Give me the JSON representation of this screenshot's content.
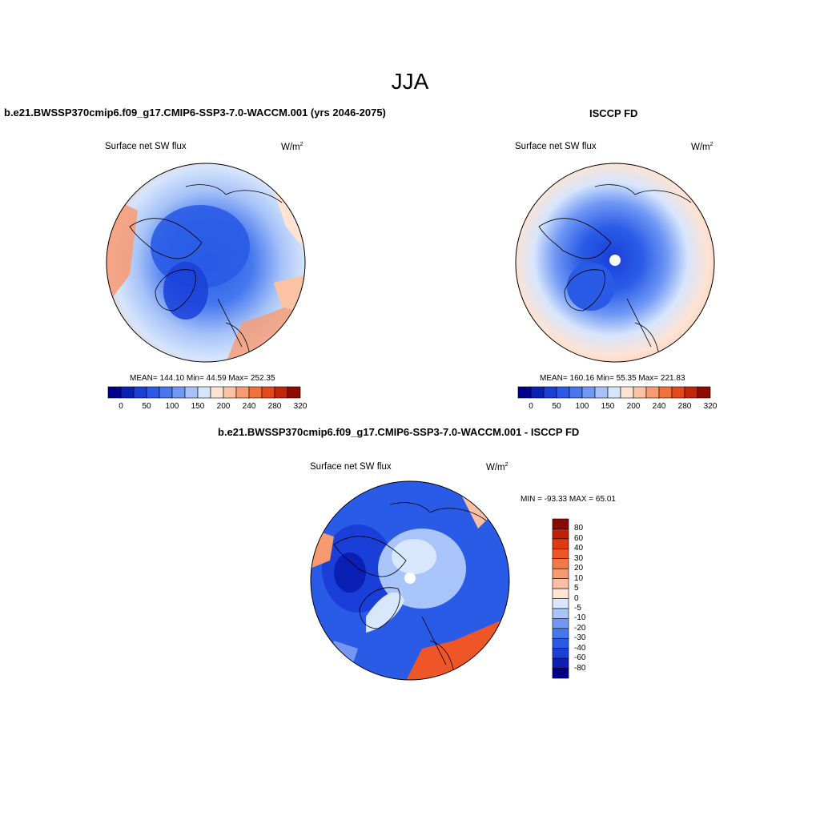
{
  "season": "JJA",
  "colors": {
    "abs_palette": [
      "#00008c",
      "#0a1fb4",
      "#1a3fd8",
      "#2a5be6",
      "#4577ee",
      "#6f97f4",
      "#a6c2f8",
      "#d6e5fc",
      "#fde3d4",
      "#fcc2a4",
      "#f99a72",
      "#f2713f",
      "#e24a1b",
      "#c0260a",
      "#8e0b00"
    ],
    "diff_palette": [
      "#00008c",
      "#0a1fb4",
      "#1a3fd8",
      "#2a5be6",
      "#4577ee",
      "#7397f2",
      "#a9c4f8",
      "#d8e7fc",
      "#fde4d6",
      "#fbc0a3",
      "#f89a70",
      "#f37a48",
      "#ef5627",
      "#df3a12",
      "#bf2109",
      "#8a0a00"
    ]
  },
  "panels": [
    {
      "title": "b.e21.BWSSP370cmip6.f09_g17.CMIP6-SSP3-7.0-WACCM.001 (yrs 2046-2075)",
      "var_name": "Surface net SW flux",
      "units_base": "W/m",
      "units_exp": "2",
      "stats": "MEAN= 144.10  Min=  44.59  Max= 252.35",
      "colorbar_labels": [
        "0",
        "50",
        "100",
        "150",
        "200",
        "240",
        "280",
        "320"
      ]
    },
    {
      "title": "ISCCP FD",
      "var_name": "Surface net SW flux",
      "units_base": "W/m",
      "units_exp": "2",
      "stats": "MEAN= 160.16  Min=  55.35  Max= 221.83",
      "colorbar_labels": [
        "0",
        "50",
        "100",
        "150",
        "200",
        "240",
        "280",
        "320"
      ]
    },
    {
      "title": "b.e21.BWSSP370cmip6.f09_g17.CMIP6-SSP3-7.0-WACCM.001 - ISCCP FD",
      "var_name": "Surface net SW flux",
      "units_base": "W/m",
      "units_exp": "2",
      "stats": "MIN = -93.33 MAX =  65.01",
      "colorbar_labels": [
        "80",
        "60",
        "40",
        "30",
        "20",
        "10",
        "5",
        "0",
        "-5",
        "-10",
        "-20",
        "-30",
        "-40",
        "-60",
        "-80"
      ]
    }
  ]
}
